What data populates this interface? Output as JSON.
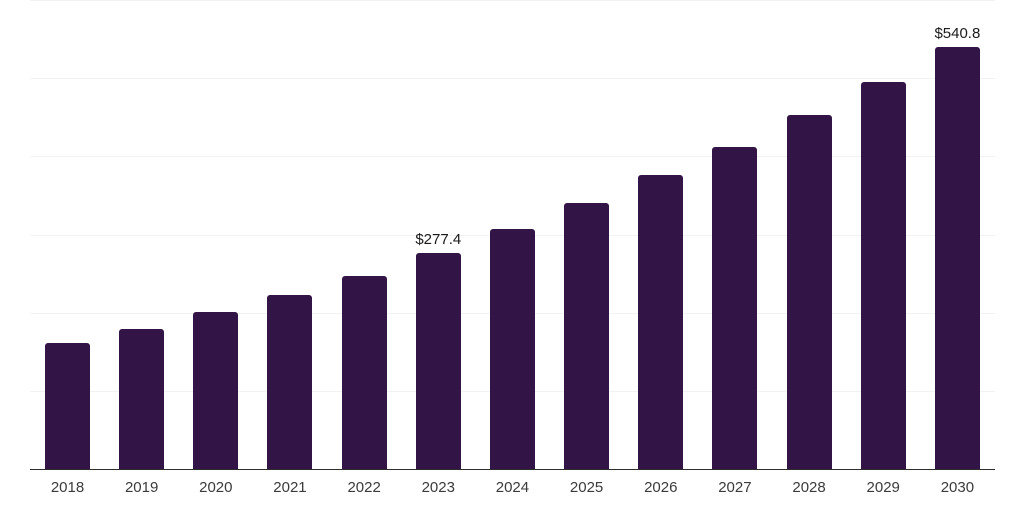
{
  "theme": {
    "background": "#ffffff",
    "bar_color": "#321447",
    "gridline_color": "#f2f2f2",
    "axis_color": "#2e2e2e",
    "tick_label_color": "#3b3b3b",
    "value_label_color": "#1a1a1a"
  },
  "chart_data": {
    "type": "bar",
    "title": "",
    "xlabel": "",
    "ylabel": "",
    "categories": [
      "2018",
      "2019",
      "2020",
      "2021",
      "2022",
      "2023",
      "2024",
      "2025",
      "2026",
      "2027",
      "2028",
      "2029",
      "2030"
    ],
    "values": [
      162.9,
      180.0,
      202.4,
      223.9,
      248.2,
      277.4,
      307.9,
      341.2,
      377.0,
      413.6,
      454.5,
      496.4,
      540.8
    ],
    "bar_labels": [
      "",
      "",
      "",
      "",
      "",
      "$277.4",
      "",
      "",
      "",
      "",
      "",
      "",
      "$540.8"
    ],
    "ylim": [
      0,
      600
    ],
    "gridline_step": 100,
    "grid": true,
    "legend": "none",
    "y_axis_labels_visible": false
  }
}
